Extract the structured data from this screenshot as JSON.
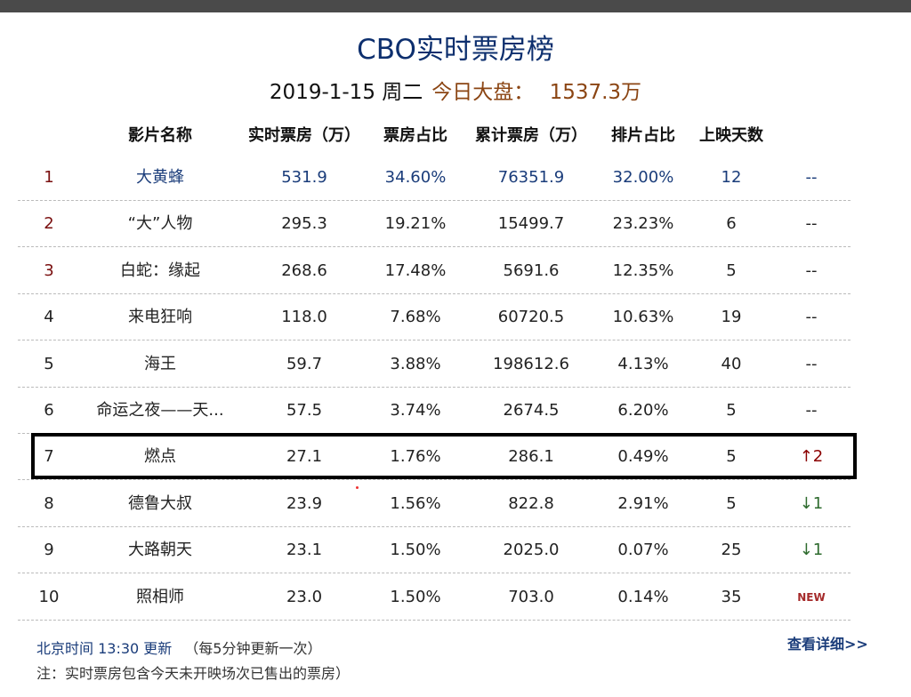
{
  "title": "CBO实时票房榜",
  "date": "2019-1-15 周二",
  "total_label": "今日大盘：",
  "total_value": "1537.3万",
  "headers": [
    "影片名称",
    "实时票房（万）",
    "票房占比",
    "累计票房（万）",
    "排片占比",
    "上映天数"
  ],
  "rows": [
    {
      "rank": "1",
      "name": "大黄蜂",
      "rt": "531.9",
      "share": "34.60%",
      "total": "76351.9",
      "screen": "32.00%",
      "days": "12",
      "trend": "--"
    },
    {
      "rank": "2",
      "name": "“大”人物",
      "rt": "295.3",
      "share": "19.21%",
      "total": "15499.7",
      "screen": "23.23%",
      "days": "6",
      "trend": "--"
    },
    {
      "rank": "3",
      "name": "白蛇：缘起",
      "rt": "268.6",
      "share": "17.48%",
      "total": "5691.6",
      "screen": "12.35%",
      "days": "5",
      "trend": "--"
    },
    {
      "rank": "4",
      "name": "来电狂响",
      "rt": "118.0",
      "share": "7.68%",
      "total": "60720.5",
      "screen": "10.63%",
      "days": "19",
      "trend": "--"
    },
    {
      "rank": "5",
      "name": "海王",
      "rt": "59.7",
      "share": "3.88%",
      "total": "198612.6",
      "screen": "4.13%",
      "days": "40",
      "trend": "--"
    },
    {
      "rank": "6",
      "name": "命运之夜——天...",
      "rt": "57.5",
      "share": "3.74%",
      "total": "2674.5",
      "screen": "6.20%",
      "days": "5",
      "trend": "--"
    },
    {
      "rank": "7",
      "name": "燃点",
      "rt": "27.1",
      "share": "1.76%",
      "total": "286.1",
      "screen": "0.49%",
      "days": "5",
      "trend": "↑2"
    },
    {
      "rank": "8",
      "name": "德鲁大叔",
      "rt": "23.9",
      "share": "1.56%",
      "total": "822.8",
      "screen": "2.91%",
      "days": "5",
      "trend": "↓1"
    },
    {
      "rank": "9",
      "name": "大路朝天",
      "rt": "23.1",
      "share": "1.50%",
      "total": "2025.0",
      "screen": "0.07%",
      "days": "25",
      "trend": "↓1"
    },
    {
      "rank": "10",
      "name": "照相师",
      "rt": "23.0",
      "share": "1.50%",
      "total": "703.0",
      "screen": "0.14%",
      "days": "35",
      "trend": "NEW"
    }
  ],
  "update": "北京时间 13:30 更新",
  "update_note": "（每5分钟更新一次）",
  "note": "注：实时票房包含今天未开映场次已售出的票房）",
  "more_link": "查看详细>>"
}
